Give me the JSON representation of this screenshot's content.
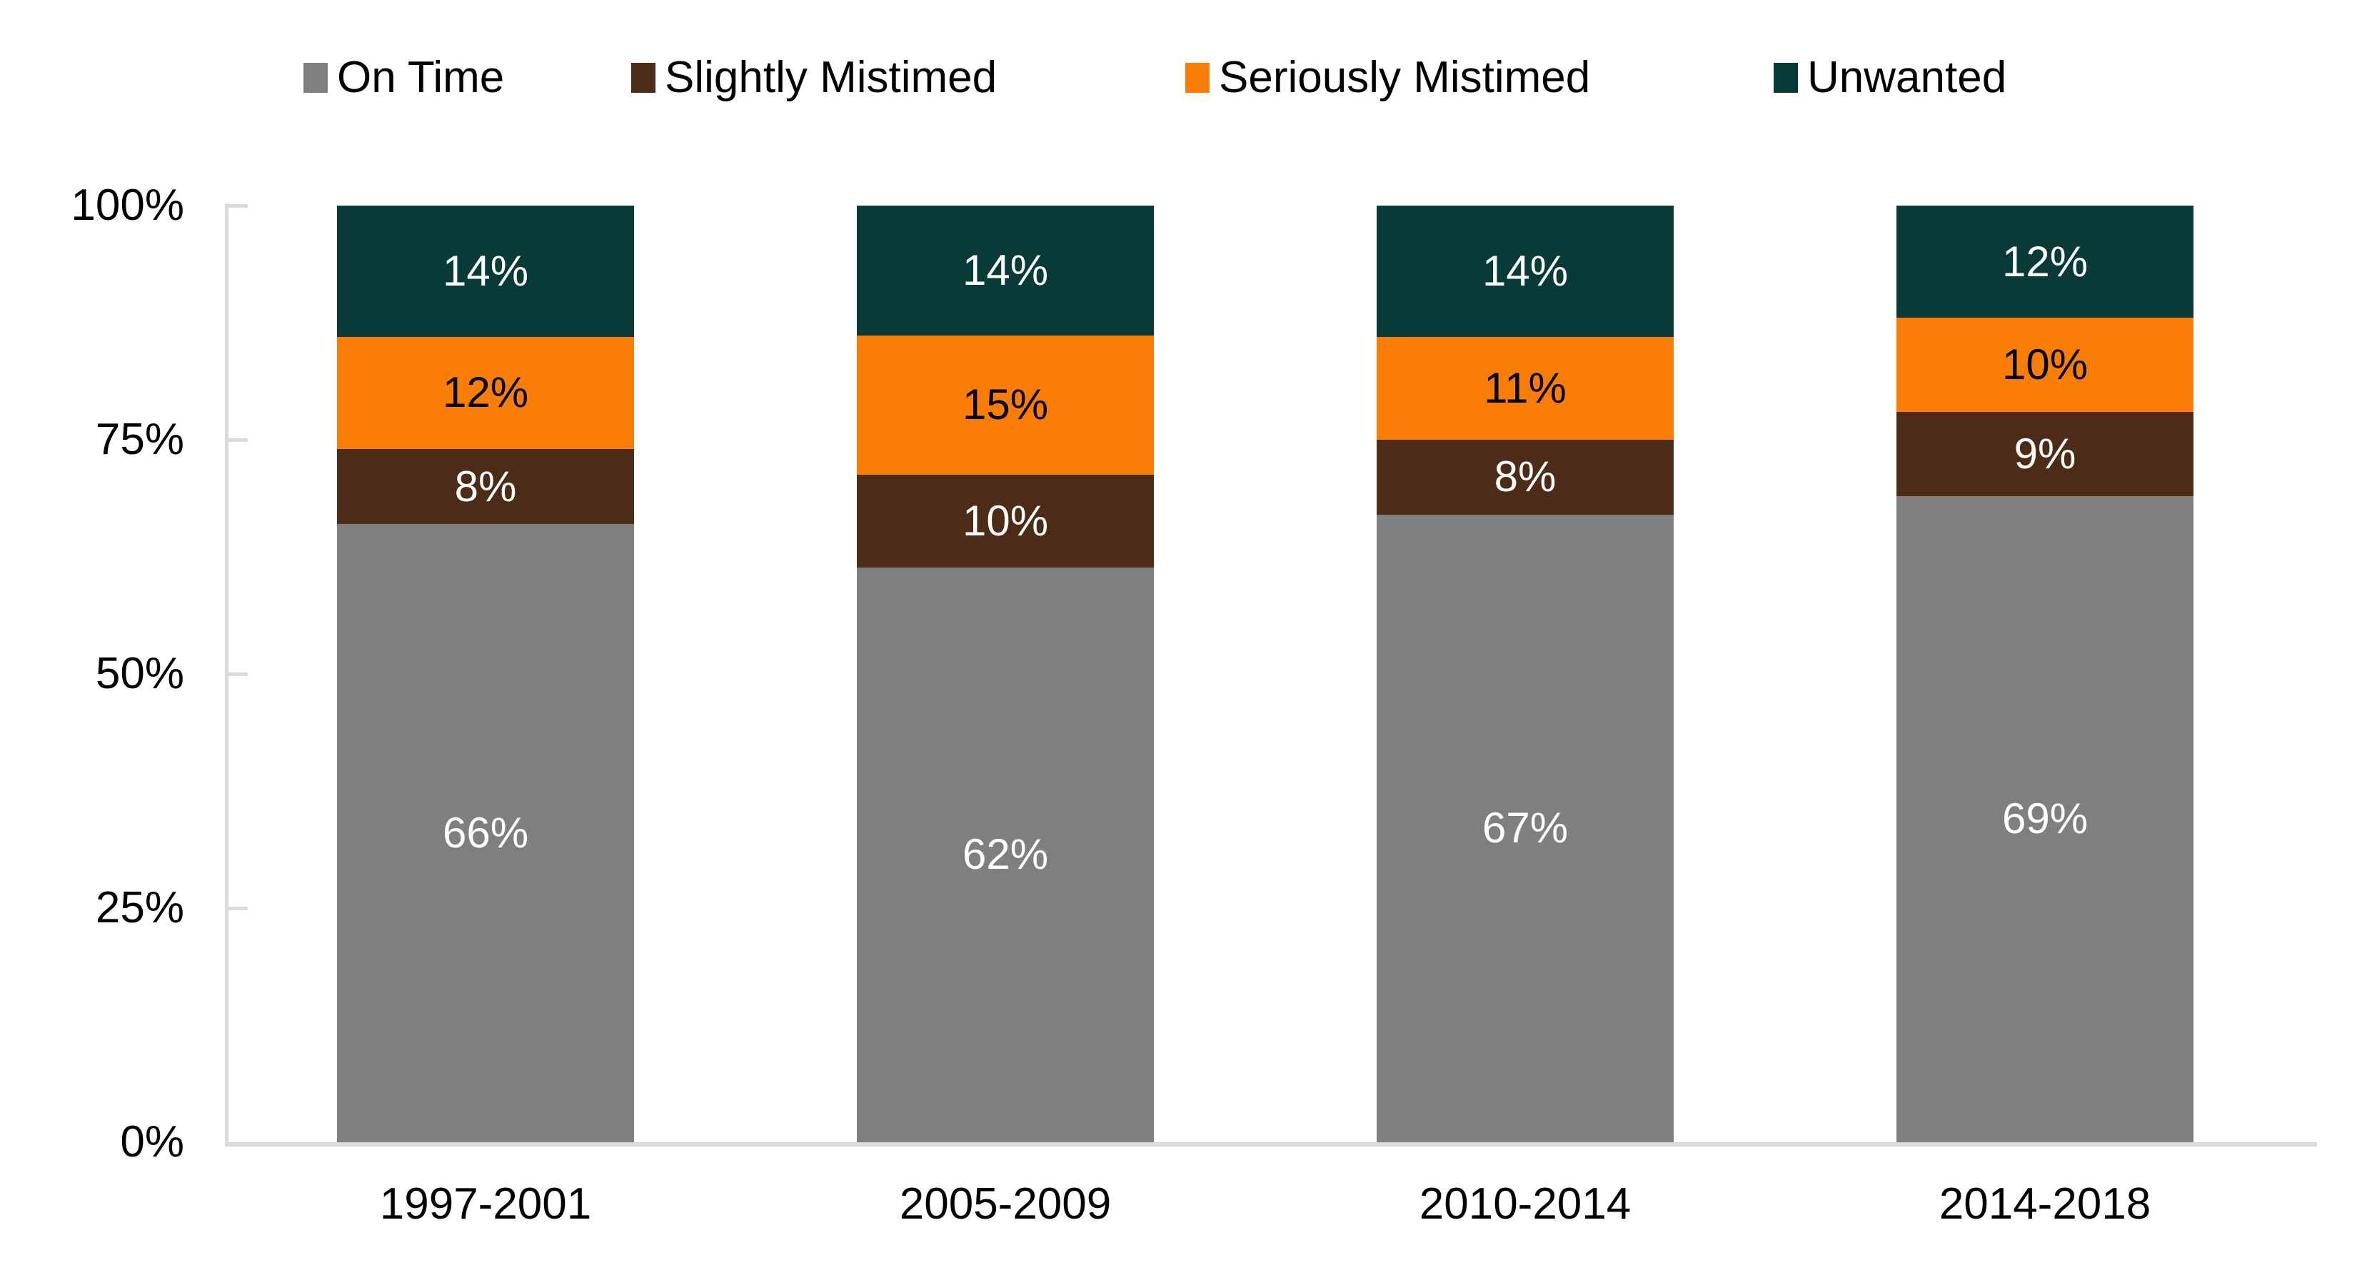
{
  "chart_data": {
    "type": "bar",
    "stacked": true,
    "stack_unit": "percent",
    "title": "",
    "xlabel": "",
    "ylabel": "",
    "categories": [
      "1997-2001",
      "2005-2009",
      "2010-2014",
      "2014-2018"
    ],
    "series": [
      {
        "name": "On Time",
        "color": "#7F7F7F",
        "label_color": "#FFFFFF",
        "values": [
          66,
          62,
          67,
          69
        ]
      },
      {
        "name": "Slightly Mistimed",
        "color": "#4C2C16",
        "label_color": "#FFFFFF",
        "values": [
          8,
          10,
          8,
          9
        ]
      },
      {
        "name": "Seriously Mistimed",
        "color": "#FA7D05",
        "label_color": "#000000",
        "values": [
          12,
          15,
          11,
          10
        ]
      },
      {
        "name": "Unwanted",
        "color": "#083A37",
        "label_color": "#FFFFFF",
        "values": [
          14,
          14,
          14,
          12
        ]
      }
    ],
    "data_label_suffix": "%",
    "y_axis": {
      "min": 0,
      "max": 100,
      "tick_labels": [
        "0%",
        "25%",
        "50%",
        "75%",
        "100%"
      ],
      "tick_values": [
        0,
        25,
        50,
        75,
        100
      ]
    },
    "legend_position": "top",
    "grid": false
  },
  "styles": {
    "background": "#FFFFFF",
    "axis_color": "#D9D9D9",
    "text_color": "#000000"
  }
}
